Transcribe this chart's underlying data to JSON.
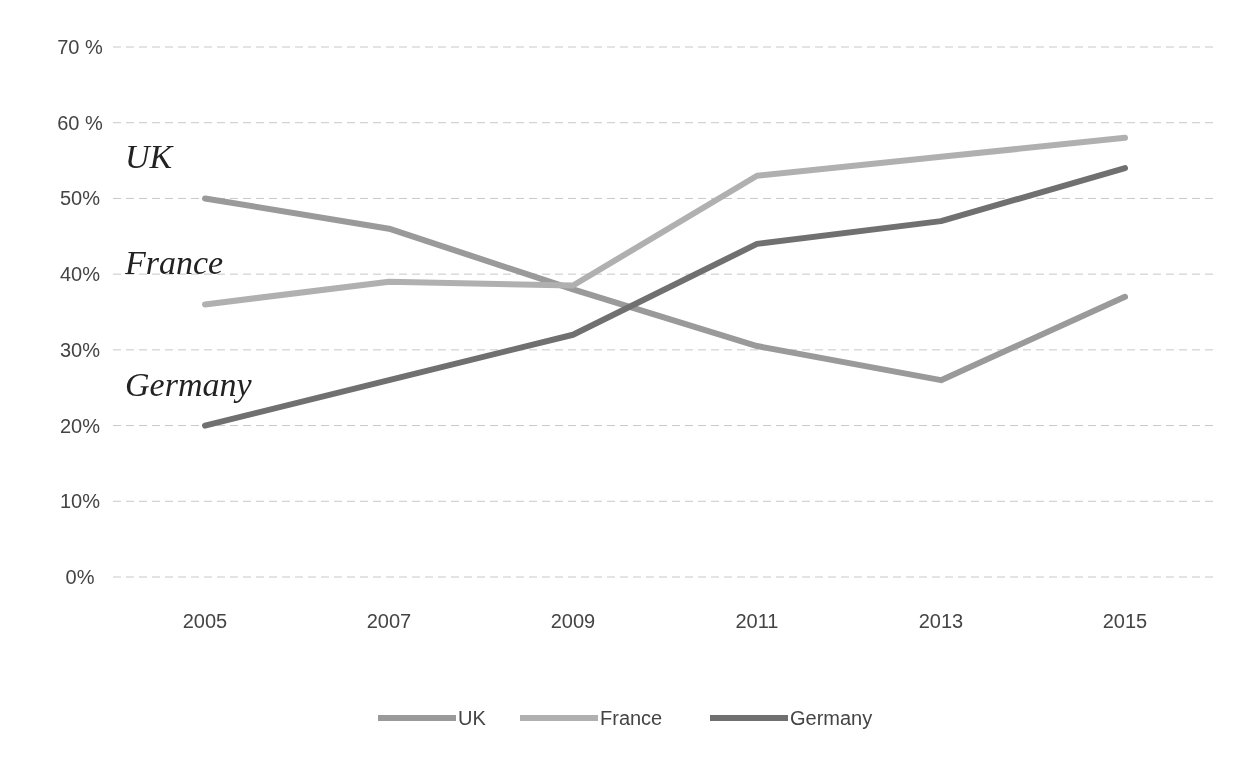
{
  "chart_data": {
    "type": "line",
    "x": [
      2005,
      2007,
      2009,
      2011,
      2013,
      2015
    ],
    "xlim": [
      2004,
      2016
    ],
    "xticks": [
      2005,
      2007,
      2009,
      2011,
      2013,
      2015
    ],
    "ylim": [
      0,
      70
    ],
    "yticks": [
      {
        "value": 0,
        "label": "0%"
      },
      {
        "value": 10,
        "label": "10%"
      },
      {
        "value": 20,
        "label": "20%"
      },
      {
        "value": 30,
        "label": "30%"
      },
      {
        "value": 40,
        "label": "40%"
      },
      {
        "value": 50,
        "label": "50%"
      },
      {
        "value": 60,
        "label": "60 %"
      },
      {
        "value": 70,
        "label": "70 %"
      }
    ],
    "series": [
      {
        "name": "UK",
        "color": "#9a9a9a",
        "values": [
          50,
          46,
          38,
          30.5,
          26,
          37
        ]
      },
      {
        "name": "France",
        "color": "#b0b0b0",
        "values": [
          36,
          39,
          38.5,
          53,
          55.5,
          58
        ]
      },
      {
        "name": "Germany",
        "color": "#707070",
        "values": [
          20,
          26,
          32,
          44,
          47,
          54
        ]
      }
    ],
    "annotations": [
      "UK",
      "France",
      "Germany"
    ],
    "grid": "y",
    "legend": "bottom",
    "marker": "none",
    "line_style": "solid"
  }
}
